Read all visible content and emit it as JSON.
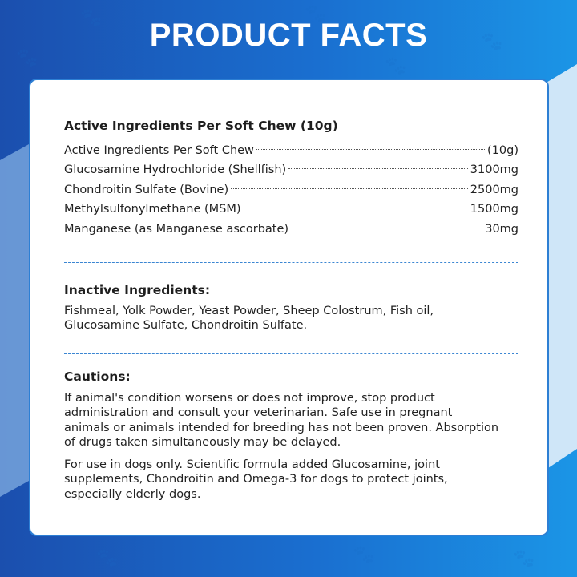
{
  "title": "PRODUCT FACTS",
  "active": {
    "heading": "Active Ingredients Per Soft Chew (10g)",
    "rows": [
      {
        "name": "Active Ingredients Per Soft Chew",
        "amount": "(10g)"
      },
      {
        "name": "Glucosamine Hydrochloride (Shellfish)",
        "amount": "3100mg"
      },
      {
        "name": "Chondroitin Sulfate (Bovine)",
        "amount": "2500mg"
      },
      {
        "name": "Methylsulfonylmethane (MSM)",
        "amount": "1500mg"
      },
      {
        "name": "Manganese (as Manganese ascorbate)",
        "amount": "30mg"
      }
    ]
  },
  "inactive": {
    "heading": "Inactive Ingredients:",
    "text": "Fishmeal, Yolk Powder, Yeast Powder, Sheep Colostrum, Fish oil, Glucosamine Sulfate, Chondroitin Sulfate."
  },
  "cautions": {
    "heading": "Cautions:",
    "paragraphs": [
      "If animal's condition worsens or does not improve, stop product administration and consult your veterinarian.  Safe use in pregnant animals or animals  intended for breeding has not been proven. Absorption of drugs taken simultaneously  may be delayed.",
      "For use in dogs only.  Scientific formula added Glucosamine, joint supplements, Chondroitin and Omega-3 for dogs to protect joints, especially elderly dogs."
    ]
  },
  "colors": {
    "accent": "#2d7fd4",
    "bg_dark": "#1b4fae",
    "bg_light": "#1b95e6"
  }
}
